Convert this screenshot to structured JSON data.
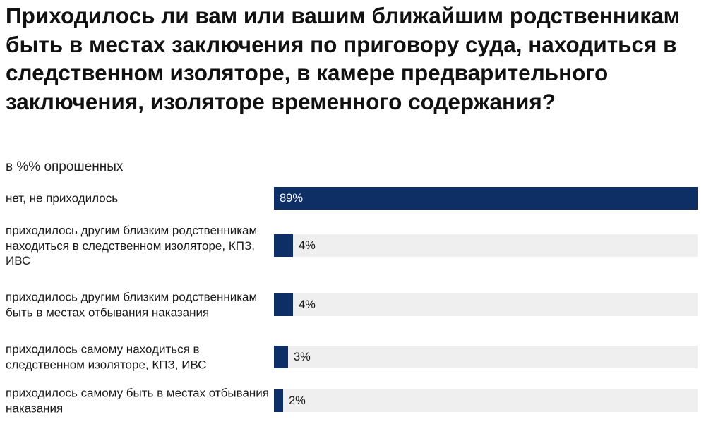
{
  "chart_data": {
    "type": "bar",
    "orientation": "horizontal",
    "title": "Приходилось ли вам или вашим ближайшим родственникам быть в местах заключения по приговору суда, находиться в следственном изоляторе, в камере предварительного заключения, изоляторе временного содержания?",
    "subtitle": "в %% опрошенных",
    "categories": [
      "нет, не приходилось",
      "приходилось другим близким родственникам находиться в следственном изоляторе, КПЗ, ИВС",
      "приходилось другим близким родственникам быть в местах отбывания наказания",
      "приходилось самому находиться в следственном изоляторе, КПЗ, ИВС",
      "приходилось самому быть в местах отбывания наказания"
    ],
    "values": [
      89,
      4,
      4,
      3,
      2
    ],
    "value_labels": [
      "89%",
      "4%",
      "4%",
      "3%",
      "2%"
    ],
    "xlim": [
      0,
      89
    ],
    "grid": false,
    "legend": "none",
    "colors": {
      "bar": "#0d2f66",
      "track": "#efefef",
      "label_inside": "#ffffff",
      "label_outside": "#1a1a1a"
    }
  }
}
